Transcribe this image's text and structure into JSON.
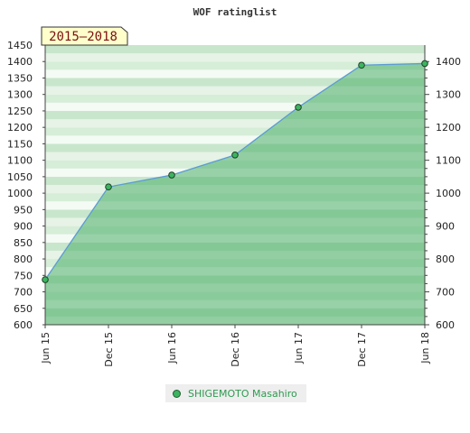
{
  "chart_data": {
    "type": "area",
    "title": "WOF ratinglist",
    "period_label": "2015–2018",
    "categories": [
      "Jun 15",
      "Dec 15",
      "Jun 16",
      "Dec 16",
      "Jun 17",
      "Dec 17",
      "Jun 18"
    ],
    "series": [
      {
        "name": "SHIGEMOTO Masahiro",
        "values": [
          737,
          1019,
          1055,
          1116,
          1261,
          1389,
          1394
        ]
      }
    ],
    "left_ylim": [
      600,
      1450
    ],
    "left_yticks": [
      600,
      650,
      700,
      750,
      800,
      850,
      900,
      950,
      1000,
      1050,
      1100,
      1150,
      1200,
      1250,
      1300,
      1350,
      1400,
      1450
    ],
    "right_yticks": [
      600,
      700,
      800,
      900,
      1000,
      1100,
      1200,
      1300,
      1400
    ],
    "grid": "banded horizontal",
    "legend_position": "bottom",
    "colors": {
      "line": "#5b9bd5",
      "marker": "#3cb460",
      "fill": "#4caf6a",
      "legend_text": "#2e9a50",
      "badge_bg": "#ffffcc",
      "badge_text": "#7a1010"
    }
  }
}
